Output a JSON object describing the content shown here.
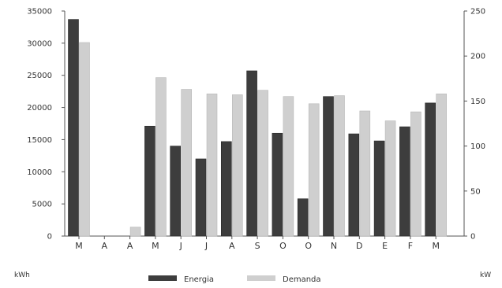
{
  "chart_data": {
    "type": "bar",
    "categories": [
      "M",
      "A",
      "A",
      "M",
      "J",
      "J",
      "A",
      "S",
      "O",
      "O",
      "N",
      "D",
      "E",
      "F",
      "M"
    ],
    "series": [
      {
        "name": "Energia",
        "axis": "left",
        "color": "#3d3d3d",
        "values": [
          33700,
          0,
          0,
          17100,
          14000,
          12000,
          14700,
          25700,
          16000,
          5800,
          21700,
          15900,
          14800,
          17000,
          20700
        ]
      },
      {
        "name": "Demanda",
        "axis": "right",
        "color": "#cfcfcf",
        "values": [
          215,
          0,
          10,
          176,
          163,
          158,
          157,
          162,
          155,
          147,
          156,
          139,
          128,
          138,
          158
        ]
      }
    ],
    "ylim_left": [
      0,
      35000
    ],
    "yticks_left": [
      "0",
      "5000",
      "10000",
      "15000",
      "20000",
      "25000",
      "30000",
      "35000"
    ],
    "ylim_right": [
      0,
      250
    ],
    "yticks_right": [
      "0",
      "50",
      "100",
      "150",
      "200",
      "250"
    ],
    "ylabel_left": "kWh",
    "ylabel_right": "kW",
    "grid": false,
    "legend_position": "bottom"
  }
}
